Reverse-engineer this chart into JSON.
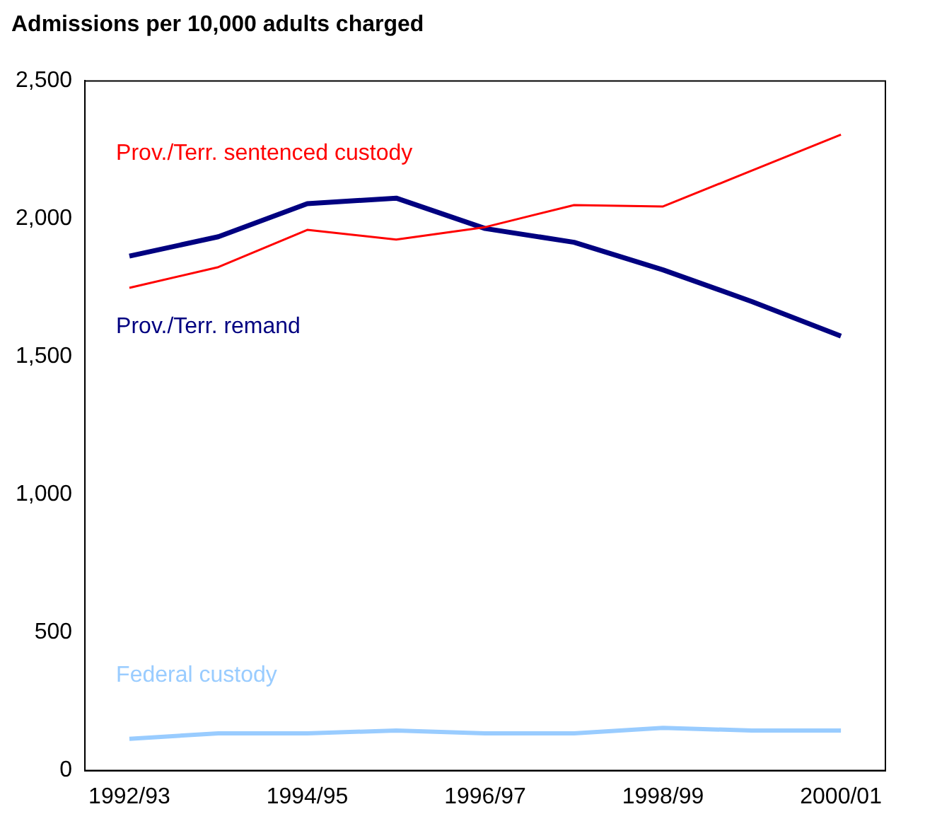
{
  "chart_data": {
    "type": "line",
    "ylabel": "Admissions per 10,000 adults charged",
    "categories": [
      "1992/93",
      null,
      "1994/95",
      null,
      "1996/97",
      null,
      "1998/99",
      null,
      "2000/01"
    ],
    "series": [
      {
        "name": "Prov./Terr. sentenced custody",
        "color": "#ff0000",
        "values": [
          1750,
          1825,
          1960,
          1925,
          1970,
          2050,
          2045,
          2175,
          2305
        ]
      },
      {
        "name": "Prov./Terr. remand",
        "color": "#000080",
        "values": [
          1865,
          1935,
          2055,
          2075,
          1965,
          1915,
          1815,
          1700,
          1575
        ]
      },
      {
        "name": "Federal custody",
        "color": "#99ccff",
        "values": [
          115,
          135,
          135,
          145,
          135,
          135,
          155,
          145,
          145
        ]
      }
    ],
    "ylim": [
      0,
      2500
    ],
    "yticks": [
      0,
      {
        "value": 500,
        "label": "500"
      },
      {
        "value": 1000,
        "label": "1,000"
      },
      {
        "value": 1500,
        "label": "1,500"
      },
      {
        "value": 2000,
        "label": "2,000"
      },
      {
        "value": 2500,
        "label": "2,500"
      }
    ],
    "grid": false,
    "legend": false,
    "marker": "none",
    "line_style": "solid"
  }
}
